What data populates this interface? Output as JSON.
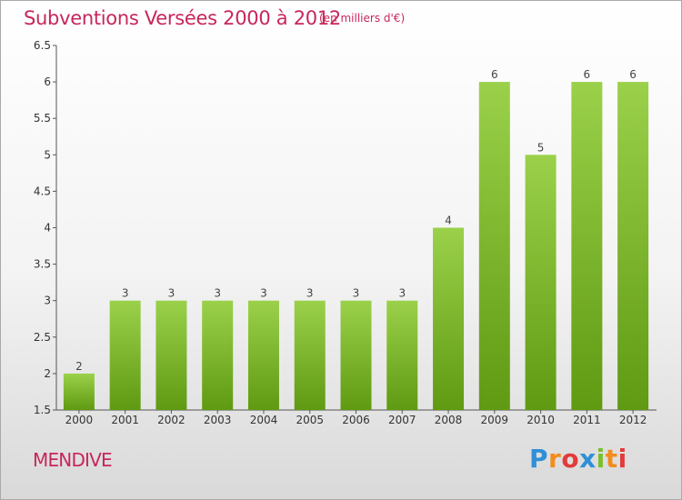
{
  "title": "Subventions Versées 2000 à 2012",
  "unit_note": "(en milliers d'€)",
  "place": "MENDIVE",
  "logo": {
    "text": "Proxiti"
  },
  "colors": {
    "accent": "#c8265a",
    "bar_top": "#9bd14a",
    "bar_bottom": "#5f9a12"
  },
  "chart_data": {
    "type": "bar",
    "title": "Subventions Versées 2000 à 2012",
    "categories": [
      "2000",
      "2001",
      "2002",
      "2003",
      "2004",
      "2005",
      "2006",
      "2007",
      "2008",
      "2009",
      "2010",
      "2011",
      "2012"
    ],
    "values": [
      2,
      3,
      3,
      3,
      3,
      3,
      3,
      3,
      4,
      6,
      5,
      6,
      6
    ],
    "value_labels": [
      "2",
      "3",
      "3",
      "3",
      "3",
      "3",
      "3",
      "3",
      "4",
      "6",
      "5",
      "6",
      "6"
    ],
    "ylim": [
      1.5,
      6.5
    ],
    "yticks": [
      "1.5",
      "2",
      "2.5",
      "3",
      "3.5",
      "4",
      "4.5",
      "5",
      "5.5",
      "6",
      "6.5"
    ],
    "grid": false,
    "legend": "none"
  }
}
